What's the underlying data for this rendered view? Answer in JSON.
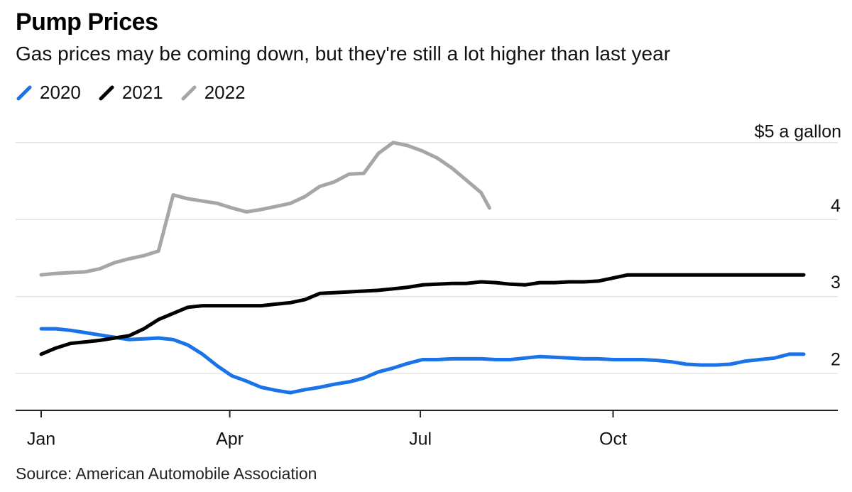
{
  "title": "Pump Prices",
  "subtitle": "Gas prices may be coming down, but they're still a lot higher than last year",
  "source": "Source: American Automobile Association",
  "legend": [
    {
      "label": "2020",
      "color": "#1a73e8"
    },
    {
      "label": "2021",
      "color": "#000000"
    },
    {
      "label": "2022",
      "color": "#a6a6a6"
    }
  ],
  "chart_data": {
    "type": "line",
    "title": "Pump Prices",
    "subtitle": "Gas prices may be coming down, but they're still a lot higher than last year",
    "x_unit": "day of year",
    "xlim": [
      1,
      365
    ],
    "ylim": [
      1.55,
      5.05
    ],
    "y_ticks": [
      {
        "value": 2,
        "label": "2"
      },
      {
        "value": 3,
        "label": "3"
      },
      {
        "value": 4,
        "label": "4"
      },
      {
        "value": 5,
        "label": "$5 a gallon"
      }
    ],
    "x_ticks": [
      {
        "value": 1,
        "label": "Jan"
      },
      {
        "value": 91,
        "label": "Apr"
      },
      {
        "value": 182,
        "label": "Jul"
      },
      {
        "value": 274,
        "label": "Oct"
      }
    ],
    "grid": "horizontal",
    "legend_position": "top-left",
    "series": [
      {
        "name": "2020",
        "color": "#1a73e8",
        "points": [
          [
            1,
            2.58
          ],
          [
            8,
            2.58
          ],
          [
            15,
            2.56
          ],
          [
            22,
            2.53
          ],
          [
            29,
            2.5
          ],
          [
            36,
            2.47
          ],
          [
            43,
            2.44
          ],
          [
            50,
            2.45
          ],
          [
            57,
            2.46
          ],
          [
            64,
            2.44
          ],
          [
            71,
            2.37
          ],
          [
            78,
            2.25
          ],
          [
            85,
            2.1
          ],
          [
            92,
            1.97
          ],
          [
            99,
            1.9
          ],
          [
            106,
            1.82
          ],
          [
            113,
            1.78
          ],
          [
            120,
            1.75
          ],
          [
            127,
            1.79
          ],
          [
            134,
            1.82
          ],
          [
            141,
            1.86
          ],
          [
            148,
            1.89
          ],
          [
            155,
            1.94
          ],
          [
            162,
            2.02
          ],
          [
            169,
            2.07
          ],
          [
            176,
            2.13
          ],
          [
            183,
            2.18
          ],
          [
            190,
            2.18
          ],
          [
            197,
            2.19
          ],
          [
            204,
            2.19
          ],
          [
            211,
            2.19
          ],
          [
            218,
            2.18
          ],
          [
            225,
            2.18
          ],
          [
            232,
            2.2
          ],
          [
            239,
            2.22
          ],
          [
            246,
            2.21
          ],
          [
            253,
            2.2
          ],
          [
            260,
            2.19
          ],
          [
            267,
            2.19
          ],
          [
            274,
            2.18
          ],
          [
            281,
            2.18
          ],
          [
            288,
            2.18
          ],
          [
            295,
            2.17
          ],
          [
            302,
            2.15
          ],
          [
            309,
            2.12
          ],
          [
            316,
            2.11
          ],
          [
            323,
            2.11
          ],
          [
            330,
            2.12
          ],
          [
            337,
            2.16
          ],
          [
            344,
            2.18
          ],
          [
            351,
            2.2
          ],
          [
            358,
            2.25
          ],
          [
            365,
            2.25
          ]
        ]
      },
      {
        "name": "2021",
        "color": "#000000",
        "points": [
          [
            1,
            2.25
          ],
          [
            8,
            2.33
          ],
          [
            15,
            2.39
          ],
          [
            22,
            2.41
          ],
          [
            29,
            2.43
          ],
          [
            36,
            2.46
          ],
          [
            43,
            2.49
          ],
          [
            50,
            2.58
          ],
          [
            57,
            2.7
          ],
          [
            64,
            2.78
          ],
          [
            71,
            2.86
          ],
          [
            78,
            2.88
          ],
          [
            85,
            2.88
          ],
          [
            92,
            2.88
          ],
          [
            99,
            2.88
          ],
          [
            106,
            2.88
          ],
          [
            113,
            2.9
          ],
          [
            120,
            2.92
          ],
          [
            127,
            2.96
          ],
          [
            134,
            3.04
          ],
          [
            141,
            3.05
          ],
          [
            148,
            3.06
          ],
          [
            155,
            3.07
          ],
          [
            162,
            3.08
          ],
          [
            169,
            3.1
          ],
          [
            176,
            3.12
          ],
          [
            183,
            3.15
          ],
          [
            190,
            3.16
          ],
          [
            197,
            3.17
          ],
          [
            204,
            3.17
          ],
          [
            211,
            3.19
          ],
          [
            218,
            3.18
          ],
          [
            225,
            3.16
          ],
          [
            232,
            3.15
          ],
          [
            239,
            3.18
          ],
          [
            246,
            3.18
          ],
          [
            253,
            3.19
          ],
          [
            260,
            3.19
          ],
          [
            267,
            3.2
          ],
          [
            274,
            3.24
          ],
          [
            281,
            3.28
          ],
          [
            288,
            3.28
          ],
          [
            295,
            3.28
          ],
          [
            302,
            3.28
          ],
          [
            309,
            3.28
          ],
          [
            316,
            3.28
          ],
          [
            323,
            3.28
          ],
          [
            330,
            3.28
          ],
          [
            337,
            3.28
          ],
          [
            344,
            3.28
          ],
          [
            351,
            3.28
          ],
          [
            358,
            3.28
          ],
          [
            365,
            3.28
          ]
        ]
      },
      {
        "name": "2022",
        "color": "#a6a6a6",
        "points": [
          [
            1,
            3.28
          ],
          [
            8,
            3.3
          ],
          [
            15,
            3.31
          ],
          [
            22,
            3.32
          ],
          [
            29,
            3.36
          ],
          [
            36,
            3.44
          ],
          [
            43,
            3.49
          ],
          [
            50,
            3.53
          ],
          [
            57,
            3.59
          ],
          [
            64,
            4.32
          ],
          [
            71,
            4.27
          ],
          [
            78,
            4.24
          ],
          [
            85,
            4.21
          ],
          [
            92,
            4.15
          ],
          [
            99,
            4.1
          ],
          [
            106,
            4.13
          ],
          [
            113,
            4.17
          ],
          [
            120,
            4.21
          ],
          [
            127,
            4.3
          ],
          [
            134,
            4.43
          ],
          [
            141,
            4.49
          ],
          [
            148,
            4.59
          ],
          [
            155,
            4.6
          ],
          [
            162,
            4.86
          ],
          [
            169,
            5.0
          ],
          [
            176,
            4.96
          ],
          [
            183,
            4.89
          ],
          [
            190,
            4.8
          ],
          [
            197,
            4.67
          ],
          [
            204,
            4.51
          ],
          [
            211,
            4.35
          ],
          [
            215,
            4.15
          ]
        ]
      }
    ]
  }
}
